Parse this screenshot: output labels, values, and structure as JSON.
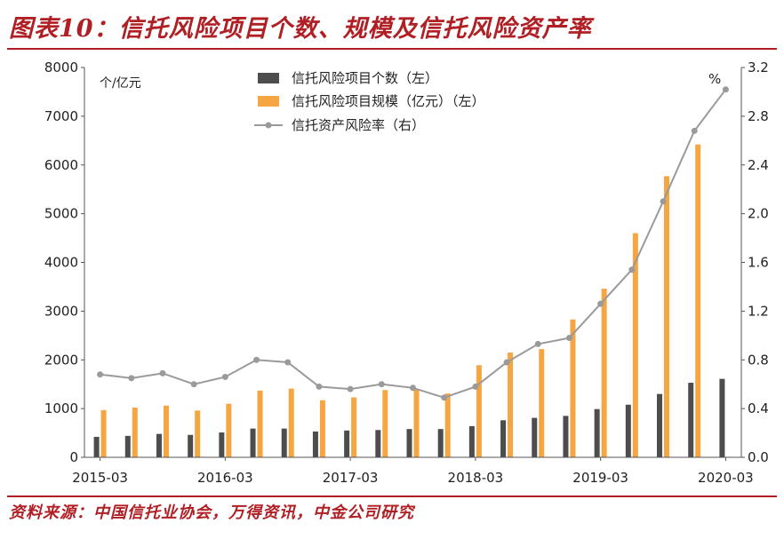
{
  "title": "图表10：信托风险项目个数、规模及信托风险资产率",
  "source": "资料来源：中国信托业协会，万得资讯，中金公司研究",
  "colors": {
    "title": "#b01f24",
    "count_bar": "#4d4d4d",
    "scale_bar": "#f5a542",
    "rate_line": "#9a9a9a"
  },
  "chart_data": {
    "type": "bar",
    "left_unit": "个/亿元",
    "right_unit": "%",
    "left_axis": {
      "ylim": [
        0,
        8000
      ],
      "ticks": [
        "0",
        "1000",
        "2000",
        "3000",
        "4000",
        "5000",
        "6000",
        "7000",
        "8000"
      ]
    },
    "right_axis": {
      "ylim": [
        0,
        3.2
      ],
      "ticks": [
        "0.0",
        "0.4",
        "0.8",
        "1.2",
        "1.6",
        "2.0",
        "2.4",
        "2.8",
        "3.2"
      ]
    },
    "x_tick_labels": [
      "2015-03",
      "2016-03",
      "2017-03",
      "2018-03",
      "2019-03",
      "2020-03"
    ],
    "categories": [
      "2015-03",
      "2015-06",
      "2015-09",
      "2015-12",
      "2016-03",
      "2016-06",
      "2016-09",
      "2016-12",
      "2017-03",
      "2017-06",
      "2017-09",
      "2017-12",
      "2018-03",
      "2018-06",
      "2018-09",
      "2018-12",
      "2019-03",
      "2019-06",
      "2019-09",
      "2019-12",
      "2020-03"
    ],
    "legend_position": "top",
    "series": [
      {
        "name": "信托风险项目个数（左）",
        "type": "bar",
        "axis": "left",
        "values": [
          420,
          440,
          480,
          460,
          510,
          590,
          590,
          530,
          550,
          560,
          580,
          580,
          640,
          760,
          810,
          850,
          990,
          1080,
          1300,
          1530,
          1610
        ]
      },
      {
        "name": "信托风险项目规模（亿元）（左）",
        "type": "bar",
        "axis": "left",
        "values": [
          970,
          1020,
          1060,
          960,
          1100,
          1370,
          1410,
          1170,
          1230,
          1380,
          1400,
          1310,
          1890,
          2150,
          2220,
          2830,
          3460,
          4600,
          5770,
          6420,
          0
        ]
      },
      {
        "name": "信托资产风险率（右）",
        "type": "line",
        "axis": "right",
        "values": [
          0.68,
          0.65,
          0.69,
          0.6,
          0.66,
          0.8,
          0.78,
          0.58,
          0.56,
          0.6,
          0.57,
          0.49,
          0.58,
          0.78,
          0.93,
          0.98,
          1.26,
          1.54,
          2.1,
          2.68,
          3.02
        ]
      }
    ]
  }
}
